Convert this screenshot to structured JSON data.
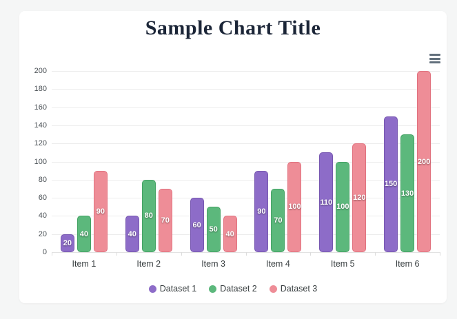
{
  "title": "Sample Chart Title",
  "title_color": "#1b2537",
  "toolbar": {
    "menu_icon": "hamburger-menu-icon"
  },
  "chart_data": {
    "type": "bar",
    "title": "Sample Chart Title",
    "categories": [
      "Item 1",
      "Item 2",
      "Item 3",
      "Item 4",
      "Item 5",
      "Item 6"
    ],
    "series": [
      {
        "name": "Dataset 1",
        "color": "#8d6cc8",
        "border_color": "#7757b0",
        "values": [
          20,
          40,
          60,
          90,
          110,
          150
        ]
      },
      {
        "name": "Dataset 2",
        "color": "#5cb87c",
        "border_color": "#43a263",
        "values": [
          40,
          80,
          50,
          70,
          100,
          130
        ]
      },
      {
        "name": "Dataset 3",
        "color": "#ee8d97",
        "border_color": "#e1717e",
        "values": [
          90,
          70,
          40,
          100,
          120,
          200
        ]
      }
    ],
    "xlabel": "",
    "ylabel": "",
    "ylim": [
      0,
      200
    ],
    "yticks": [
      0,
      20,
      40,
      60,
      80,
      100,
      120,
      140,
      160,
      180,
      200
    ],
    "grid": true,
    "legend_position": "bottom",
    "datalabels": "centered-white"
  }
}
